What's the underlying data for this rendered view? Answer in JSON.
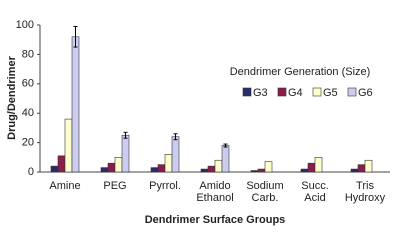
{
  "chart_data": {
    "type": "bar",
    "x_label": "Dendrimer Surface Groups",
    "y_label": "Drug/Dendrimer",
    "legend_title": "Dendrimer Generation (Size)",
    "categories": [
      "Amine",
      "PEG",
      "Pyrrol.",
      "Amido\nEthanol",
      "Sodium\nCarb.",
      "Succ.\nAcid",
      "Tris\nHydroxy"
    ],
    "series": [
      {
        "name": "G3",
        "color": "#2b2b6b",
        "values": [
          4,
          3,
          3,
          2,
          1,
          2,
          2
        ]
      },
      {
        "name": "G4",
        "color": "#8c1c4c",
        "values": [
          11,
          6,
          5,
          4,
          2,
          6,
          5
        ]
      },
      {
        "name": "G5",
        "color": "#ffffcc",
        "values": [
          36,
          10,
          12,
          8,
          7,
          10,
          8
        ]
      },
      {
        "name": "G6",
        "color": "#ccccee",
        "values": [
          92,
          25,
          24,
          18,
          null,
          null,
          null
        ],
        "errors": [
          7,
          2,
          2,
          1,
          null,
          null,
          null
        ]
      }
    ],
    "ylim": [
      0,
      100
    ],
    "yticks": [
      0,
      20,
      40,
      60,
      80,
      100
    ]
  }
}
